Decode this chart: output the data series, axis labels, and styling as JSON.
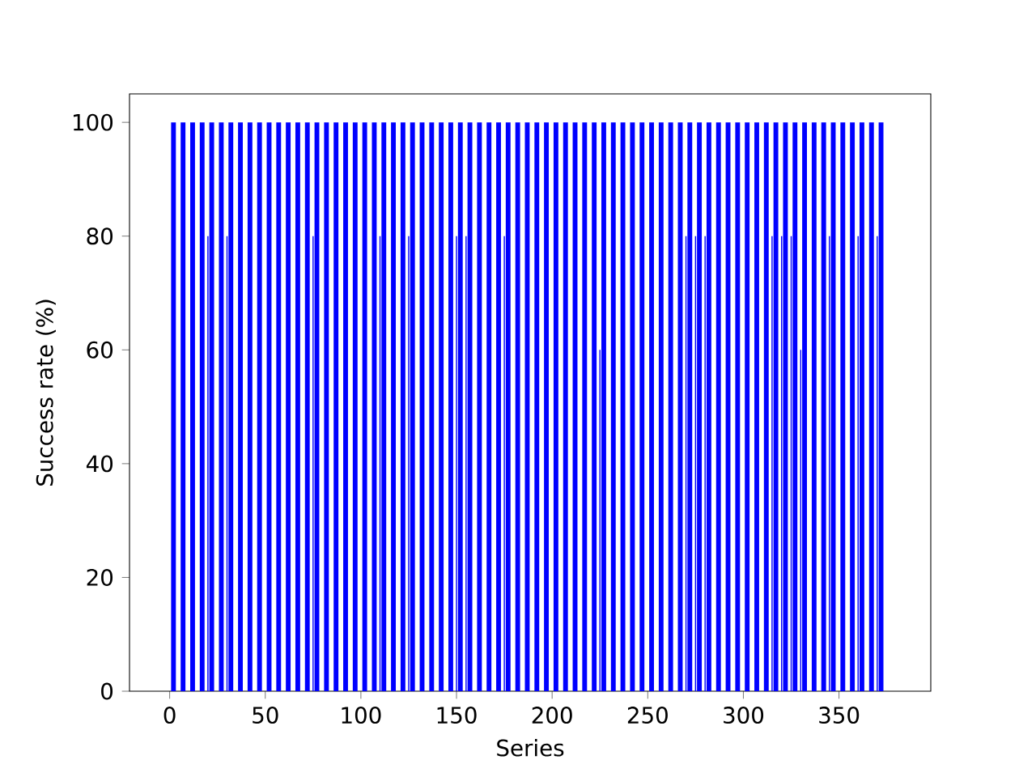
{
  "chart_data": {
    "type": "bar",
    "xlabel": "Series",
    "ylabel": "Success rate (%)",
    "xlim": [
      -21,
      398
    ],
    "ylim": [
      0,
      105
    ],
    "xticks": [
      0,
      50,
      100,
      150,
      200,
      250,
      300,
      350
    ],
    "yticks": [
      0,
      20,
      40,
      60,
      80,
      100
    ],
    "series": [
      {
        "color": "#0000ff",
        "x": [
          2,
          7,
          12,
          17,
          22,
          27,
          32,
          37,
          42,
          47,
          52,
          57,
          62,
          67,
          72,
          77,
          82,
          87,
          92,
          97,
          102,
          107,
          112,
          117,
          122,
          127,
          132,
          137,
          142,
          147,
          152,
          157,
          162,
          167,
          172,
          177,
          182,
          187,
          192,
          197,
          202,
          207,
          212,
          217,
          222,
          227,
          232,
          237,
          242,
          247,
          252,
          257,
          262,
          267,
          272,
          277,
          282,
          287,
          292,
          297,
          302,
          307,
          312,
          317,
          322,
          327,
          332,
          337,
          342,
          347,
          352,
          357,
          362,
          367,
          372
        ],
        "values": [
          100,
          100,
          100,
          100,
          100,
          100,
          100,
          100,
          100,
          100,
          100,
          100,
          100,
          100,
          100,
          100,
          100,
          100,
          100,
          100,
          100,
          100,
          100,
          100,
          100,
          100,
          100,
          100,
          100,
          100,
          100,
          100,
          100,
          100,
          100,
          100,
          100,
          100,
          100,
          100,
          100,
          100,
          100,
          100,
          100,
          100,
          100,
          100,
          100,
          100,
          100,
          100,
          100,
          100,
          100,
          100,
          100,
          100,
          100,
          100,
          100,
          100,
          100,
          100,
          100,
          100,
          100,
          100,
          100,
          100,
          100,
          100,
          100,
          100,
          100
        ]
      },
      {
        "color": "#0000ff",
        "x": [
          20,
          30,
          75,
          110,
          125,
          150,
          155,
          175,
          225,
          270,
          275,
          280,
          315,
          320,
          325,
          330,
          345,
          360,
          370
        ],
        "values": [
          80,
          80,
          80,
          80,
          80,
          80,
          80,
          80,
          60,
          80,
          80,
          80,
          80,
          80,
          80,
          60,
          80,
          80,
          80
        ]
      }
    ]
  }
}
